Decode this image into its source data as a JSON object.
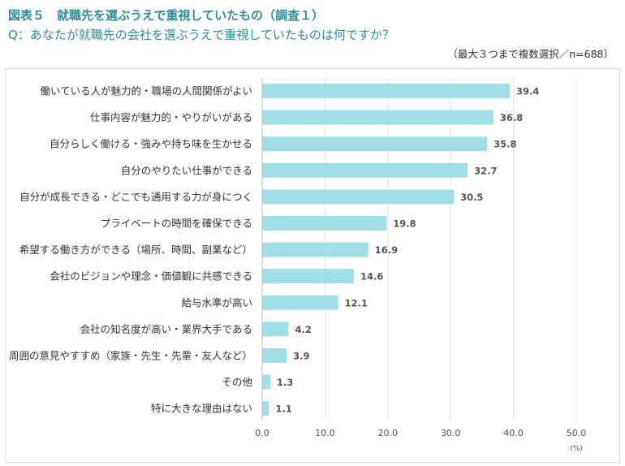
{
  "header": {
    "title": "図表５　就職先を選ぶうえで重視していたもの（調査１）",
    "question": "Q：あなたが就職先の会社を選ぶうえで重視していたものは何ですか？",
    "note": "（最大３つまで複数選択／n=688）"
  },
  "chart_data": {
    "type": "bar",
    "orientation": "horizontal",
    "categories": [
      "働いている人が魅力的・職場の人間関係がよい",
      "仕事内容が魅力的・やりがいがある",
      "自分らしく働ける・強みや持ち味を生かせる",
      "自分のやりたい仕事ができる",
      "自分が成長できる・どこでも通用する力が身につく",
      "プライベートの時間を確保できる",
      "希望する働き方ができる（場所、時間、副業など）",
      "会社のビジョンや理念・価値観に共感できる",
      "給与水準が高い",
      "会社の知名度が高い・業界大手である",
      "周囲の意見やすすめ（家族・先生・先輩・友人など）",
      "その他",
      "特に大きな理由はない"
    ],
    "values": [
      39.4,
      36.8,
      35.8,
      32.7,
      30.5,
      19.8,
      16.9,
      14.6,
      12.1,
      4.2,
      3.9,
      1.3,
      1.1
    ],
    "value_labels": [
      "39.4",
      "36.8",
      "35.8",
      "32.7",
      "30.5",
      "19.8",
      "16.9",
      "14.6",
      "12.1",
      "4.2",
      "3.9",
      "1.3",
      "1.1"
    ],
    "xlim": [
      0,
      50
    ],
    "xticks": [
      "0.0",
      "10.0",
      "20.0",
      "30.0",
      "40.0",
      "50.0"
    ],
    "xunit": "(%)",
    "grid": true,
    "bar_color": "#9fdee5",
    "grid_color": "#e0e0e0"
  }
}
